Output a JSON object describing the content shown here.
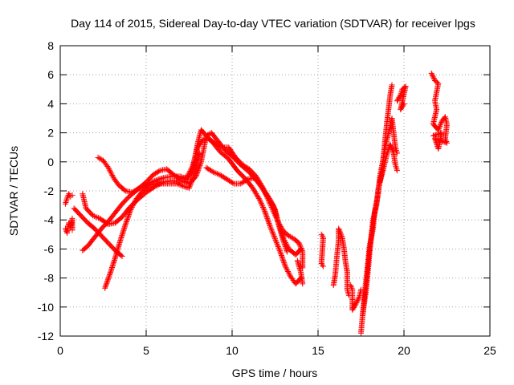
{
  "chart_data": {
    "type": "scatter",
    "title": "Day 114 of 2015, Sidereal Day-to-day VTEC variation (SDTVAR) for receiver lpgs",
    "xlabel": "GPS time / hours",
    "ylabel": "SDTVAR / TECUs",
    "xlim": [
      0,
      25
    ],
    "ylim": [
      -12,
      8
    ],
    "xticks": [
      0,
      5,
      10,
      15,
      20,
      25
    ],
    "yticks": [
      -12,
      -10,
      -8,
      -6,
      -4,
      -2,
      0,
      2,
      4,
      6,
      8
    ],
    "grid": true,
    "marker": "plus",
    "color": "#ff0000",
    "series": [
      {
        "segments": [
          [
            [
              0.3,
              -2.9
            ],
            [
              0.4,
              -2.5
            ],
            [
              0.5,
              -2.2
            ],
            [
              0.6,
              -2.4
            ],
            [
              0.7,
              -2.3
            ]
          ],
          [
            [
              0.3,
              -4.6
            ],
            [
              0.4,
              -4.9
            ],
            [
              0.5,
              -4.2
            ],
            [
              0.6,
              -4.5
            ],
            [
              0.7,
              -3.9
            ],
            [
              0.7,
              -4.7
            ]
          ],
          [
            [
              0.8,
              -3.2
            ],
            [
              1.2,
              -3.7
            ],
            [
              1.6,
              -4.2
            ],
            [
              2.0,
              -4.6
            ],
            [
              2.4,
              -5.1
            ],
            [
              2.8,
              -5.6
            ],
            [
              3.2,
              -6.1
            ],
            [
              3.6,
              -6.5
            ]
          ],
          [
            [
              1.3,
              -2.2
            ],
            [
              1.5,
              -3.2
            ],
            [
              1.9,
              -3.7
            ],
            [
              2.3,
              -3.9
            ],
            [
              2.8,
              -4.3
            ],
            [
              3.2,
              -4.2
            ],
            [
              3.6,
              -3.8
            ],
            [
              4.0,
              -3.2
            ],
            [
              4.5,
              -2.6
            ],
            [
              5.0,
              -2.1
            ],
            [
              5.5,
              -1.7
            ],
            [
              6.0,
              -1.4
            ],
            [
              6.5,
              -1.3
            ],
            [
              7.0,
              -1.3
            ],
            [
              7.5,
              -1.5
            ],
            [
              7.9,
              -1.0
            ],
            [
              8.2,
              0.0
            ],
            [
              8.5,
              1.8
            ],
            [
              8.8,
              2.0
            ],
            [
              9.2,
              1.4
            ],
            [
              9.6,
              0.8
            ],
            [
              10.0,
              0.4
            ],
            [
              10.5,
              -0.2
            ],
            [
              11.0,
              -0.7
            ],
            [
              11.5,
              -1.4
            ],
            [
              12.0,
              -2.2
            ],
            [
              12.4,
              -3.0
            ],
            [
              12.7,
              -4.2
            ],
            [
              13.0,
              -5.3
            ],
            [
              13.3,
              -6.0
            ],
            [
              13.7,
              -6.4
            ],
            [
              14.0,
              -6.0
            ]
          ],
          [
            [
              1.3,
              -6.1
            ],
            [
              1.6,
              -5.8
            ],
            [
              2.0,
              -5.2
            ],
            [
              2.4,
              -4.6
            ],
            [
              2.8,
              -4.1
            ],
            [
              3.2,
              -3.5
            ],
            [
              3.6,
              -2.9
            ],
            [
              4.0,
              -2.4
            ],
            [
              4.5,
              -1.9
            ],
            [
              5.0,
              -1.6
            ],
            [
              5.5,
              -1.3
            ],
            [
              6.0,
              -1.1
            ],
            [
              6.5,
              -1.0
            ],
            [
              7.0,
              -1.0
            ],
            [
              7.4,
              -1.2
            ],
            [
              7.7,
              -0.6
            ],
            [
              8.0,
              1.3
            ],
            [
              8.2,
              2.2
            ],
            [
              8.5,
              1.8
            ],
            [
              8.9,
              1.3
            ],
            [
              9.3,
              0.7
            ],
            [
              9.8,
              0.2
            ],
            [
              10.3,
              -0.6
            ],
            [
              10.8,
              -1.2
            ],
            [
              11.2,
              -1.8
            ],
            [
              11.6,
              -2.6
            ],
            [
              11.9,
              -3.4
            ],
            [
              12.2,
              -4.4
            ],
            [
              12.5,
              -5.3
            ],
            [
              12.8,
              -6.2
            ],
            [
              13.1,
              -7.2
            ],
            [
              13.4,
              -7.9
            ],
            [
              13.7,
              -8.4
            ],
            [
              14.0,
              -8.0
            ]
          ],
          [
            [
              2.2,
              0.3
            ],
            [
              2.5,
              0.1
            ],
            [
              2.8,
              -0.4
            ],
            [
              3.1,
              -1.1
            ],
            [
              3.4,
              -1.6
            ],
            [
              3.8,
              -2.0
            ],
            [
              4.2,
              -2.1
            ],
            [
              4.6,
              -1.8
            ],
            [
              5.0,
              -1.4
            ],
            [
              5.4,
              -0.9
            ],
            [
              5.8,
              -0.6
            ],
            [
              6.2,
              -0.5
            ],
            [
              6.6,
              -0.9
            ],
            [
              7.0,
              -1.2
            ],
            [
              7.4,
              -1.0
            ],
            [
              7.7,
              -0.3
            ],
            [
              8.0,
              1.0
            ],
            [
              8.3,
              1.5
            ],
            [
              8.6,
              1.6
            ],
            [
              9.0,
              1.3
            ],
            [
              9.4,
              1.0
            ],
            [
              9.8,
              1.0
            ],
            [
              10.2,
              0.3
            ],
            [
              10.6,
              -0.2
            ],
            [
              11.0,
              -0.5
            ],
            [
              11.4,
              -1.0
            ],
            [
              11.8,
              -1.8
            ],
            [
              12.1,
              -2.6
            ],
            [
              12.4,
              -3.4
            ],
            [
              12.7,
              -4.2
            ],
            [
              13.0,
              -4.8
            ],
            [
              13.3,
              -5.1
            ],
            [
              13.6,
              -5.3
            ],
            [
              13.9,
              -5.6
            ],
            [
              14.1,
              -6.2
            ],
            [
              14.1,
              -7.3
            ]
          ],
          [
            [
              2.6,
              -8.7
            ],
            [
              2.9,
              -7.7
            ],
            [
              3.2,
              -6.6
            ],
            [
              3.5,
              -5.4
            ],
            [
              3.8,
              -4.3
            ],
            [
              4.1,
              -3.3
            ],
            [
              4.4,
              -2.6
            ],
            [
              4.8,
              -2.0
            ],
            [
              5.2,
              -1.6
            ],
            [
              5.6,
              -1.5
            ],
            [
              6.0,
              -1.5
            ],
            [
              6.4,
              -1.5
            ],
            [
              6.8,
              -1.5
            ],
            [
              7.2,
              -1.7
            ],
            [
              7.5,
              -1.8
            ],
            [
              7.8,
              -0.9
            ],
            [
              8.1,
              0.6
            ]
          ],
          [
            [
              8.5,
              -0.4
            ],
            [
              8.9,
              -0.7
            ],
            [
              9.3,
              -0.9
            ],
            [
              9.7,
              -1.2
            ],
            [
              10.1,
              -1.5
            ],
            [
              10.5,
              -1.5
            ],
            [
              10.9,
              -1.2
            ],
            [
              11.3,
              -1.1
            ],
            [
              11.6,
              -1.5
            ],
            [
              11.9,
              -2.1
            ],
            [
              12.2,
              -2.6
            ],
            [
              12.5,
              -3.3
            ],
            [
              12.7,
              -4.3
            ],
            [
              13.0,
              -5.5
            ],
            [
              13.2,
              -6.2
            ]
          ],
          [
            [
              13.8,
              -6.8
            ],
            [
              14.0,
              -7.6
            ],
            [
              14.1,
              -8.4
            ]
          ],
          [
            [
              15.2,
              -5.0
            ],
            [
              15.3,
              -5.2
            ],
            [
              15.2,
              -7.0
            ],
            [
              15.3,
              -7.2
            ]
          ],
          [
            [
              15.9,
              -8.5
            ],
            [
              16.0,
              -7.8
            ],
            [
              16.1,
              -6.5
            ],
            [
              16.2,
              -5.4
            ],
            [
              16.2,
              -4.6
            ],
            [
              16.4,
              -5.2
            ],
            [
              16.5,
              -5.9
            ],
            [
              16.6,
              -6.9
            ],
            [
              16.7,
              -7.6
            ],
            [
              16.7,
              -8.8
            ],
            [
              16.8,
              -9.2
            ]
          ],
          [
            [
              16.9,
              -8.5
            ],
            [
              17.0,
              -8.8
            ],
            [
              17.0,
              -9.4
            ],
            [
              17.0,
              -10.2
            ],
            [
              17.2,
              -9.8
            ],
            [
              17.4,
              -9.3
            ],
            [
              17.5,
              -8.8
            ]
          ],
          [
            [
              17.5,
              -11.8
            ],
            [
              17.6,
              -10.5
            ],
            [
              17.7,
              -9.2
            ],
            [
              17.8,
              -8.1
            ],
            [
              17.9,
              -7.0
            ],
            [
              18.0,
              -5.8
            ],
            [
              18.2,
              -4.6
            ],
            [
              18.3,
              -3.4
            ],
            [
              18.5,
              -2.2
            ],
            [
              18.6,
              -1.0
            ],
            [
              18.8,
              0.2
            ],
            [
              18.9,
              1.5
            ],
            [
              19.0,
              2.6
            ],
            [
              19.1,
              3.6
            ],
            [
              19.2,
              4.6
            ],
            [
              19.3,
              5.3
            ]
          ],
          [
            [
              17.6,
              -10.5
            ],
            [
              17.8,
              -8.8
            ],
            [
              17.9,
              -7.6
            ],
            [
              18.0,
              -6.3
            ],
            [
              18.1,
              -5.1
            ],
            [
              18.2,
              -4.0
            ],
            [
              18.4,
              -3.0
            ],
            [
              18.5,
              -1.9
            ],
            [
              18.7,
              -0.8
            ],
            [
              18.8,
              0.3
            ],
            [
              19.0,
              1.5
            ],
            [
              19.2,
              2.4
            ],
            [
              19.3,
              3.0
            ],
            [
              19.4,
              2.0
            ],
            [
              19.5,
              1.0
            ],
            [
              19.6,
              0.6
            ]
          ],
          [
            [
              18.6,
              -1.4
            ],
            [
              18.8,
              -0.5
            ],
            [
              19.0,
              0.5
            ],
            [
              19.2,
              1.2
            ],
            [
              19.4,
              0.6
            ],
            [
              19.5,
              -0.2
            ],
            [
              19.6,
              -0.6
            ]
          ],
          [
            [
              19.6,
              4.2
            ],
            [
              19.8,
              4.6
            ],
            [
              19.9,
              5.0
            ],
            [
              20.1,
              5.2
            ],
            [
              19.8,
              3.6
            ],
            [
              20.0,
              4.0
            ]
          ],
          [
            [
              21.6,
              6.1
            ],
            [
              21.8,
              5.6
            ],
            [
              22.0,
              5.4
            ],
            [
              21.8,
              4.2
            ],
            [
              21.9,
              3.6
            ],
            [
              21.7,
              2.6
            ],
            [
              22.0,
              2.2
            ],
            [
              22.2,
              2.8
            ],
            [
              22.4,
              3.1
            ],
            [
              22.5,
              2.6
            ],
            [
              22.4,
              1.6
            ],
            [
              22.5,
              1.3
            ],
            [
              21.8,
              1.6
            ],
            [
              22.0,
              0.9
            ],
            [
              22.2,
              2.0
            ],
            [
              21.7,
              1.8
            ]
          ]
        ]
      }
    ]
  }
}
